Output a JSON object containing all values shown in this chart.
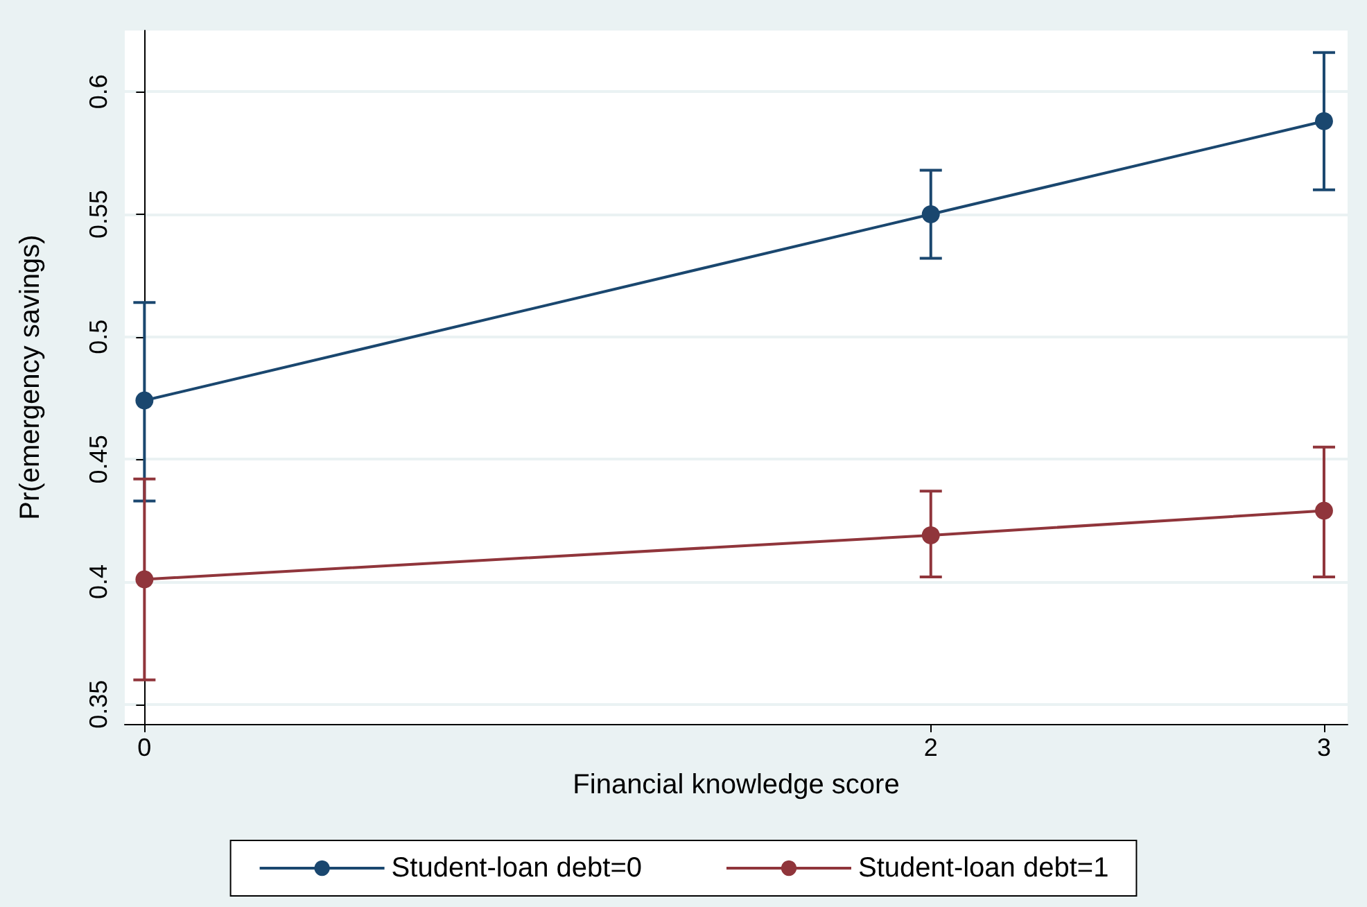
{
  "chart_data": {
    "type": "line",
    "xlabel": "Financial knowledge score",
    "ylabel": "Pr(emergency savings)",
    "x": [
      0,
      2,
      3
    ],
    "series": [
      {
        "name": "Student-loan debt=0",
        "color": "#1a476f",
        "values": [
          0.474,
          0.55,
          0.588
        ],
        "errors": [
          [
            0.433,
            0.514
          ],
          [
            0.532,
            0.568
          ],
          [
            0.56,
            0.616
          ]
        ]
      },
      {
        "name": "Student-loan debt=1",
        "color": "#90353b",
        "values": [
          0.401,
          0.419,
          0.429
        ],
        "errors": [
          [
            0.36,
            0.442
          ],
          [
            0.402,
            0.437
          ],
          [
            0.402,
            0.455
          ]
        ]
      }
    ],
    "xlim": [
      -0.05,
      3.06
    ],
    "xticks": [
      0,
      2,
      3
    ],
    "ylim": [
      0.342,
      0.625
    ],
    "yticks": [
      0.35,
      0.4,
      0.45,
      0.5,
      0.55,
      0.6
    ],
    "grid": "y",
    "legend": "bottom",
    "marker": "circle",
    "line_style": "solid"
  }
}
